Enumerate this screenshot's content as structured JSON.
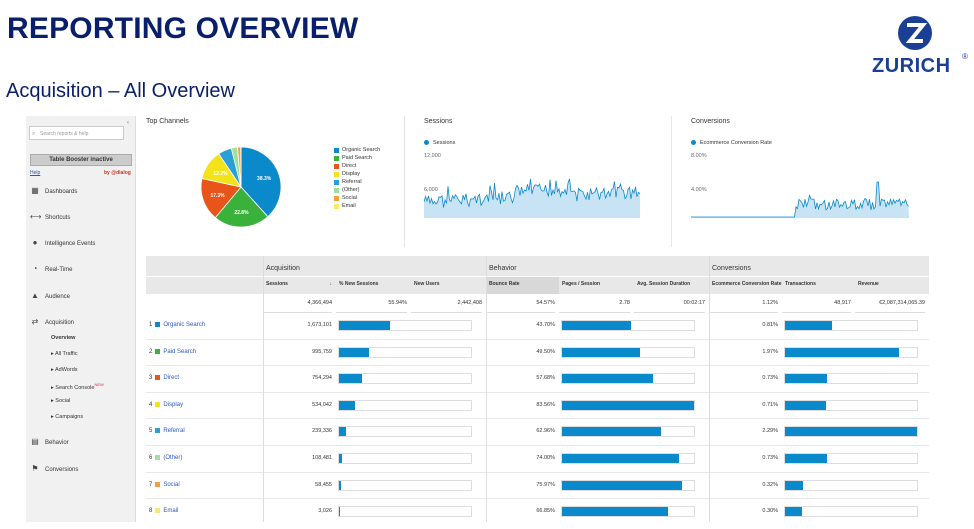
{
  "slide": {
    "title": "REPORTING OVERVIEW",
    "subtitle": "Acquisition – All Overview",
    "logo_text": "ZURICH",
    "logo_reg": "®"
  },
  "sidebar": {
    "search_placeholder": "Search reports & help",
    "collapse_icon": "‹",
    "booster_label": "Table Booster inactive",
    "help_label": "Help",
    "by_label": "by @dialog",
    "items": [
      {
        "label": "Dashboards",
        "icon": "grid-icon",
        "glyph": "▦"
      },
      {
        "label": "Shortcuts",
        "icon": "shortcut-arrow-icon",
        "glyph": "⟷"
      },
      {
        "label": "Intelligence Events",
        "icon": "bulb-icon",
        "glyph": "●"
      },
      {
        "label": "Real-Time",
        "icon": "clock-icon",
        "glyph": "◔"
      },
      {
        "label": "Audience",
        "icon": "people-icon",
        "glyph": "▲"
      },
      {
        "label": "Acquisition",
        "icon": "acquisition-arrows-icon",
        "glyph": "⇄"
      },
      {
        "label": "Behavior",
        "icon": "behavior-page-icon",
        "glyph": "▤"
      },
      {
        "label": "Conversions",
        "icon": "flag-icon",
        "glyph": "⚑"
      }
    ],
    "sub_items": [
      {
        "label": "Overview"
      },
      {
        "label": "▸ All Traffic"
      },
      {
        "label": "▸ AdWords"
      },
      {
        "label": "▸ Search Console",
        "badge": "NEW"
      },
      {
        "label": "▸ Social"
      },
      {
        "label": "▸ Campaigns"
      }
    ]
  },
  "panels": {
    "top_channels": "Top Channels",
    "sessions": "Sessions",
    "conversions": "Conversions",
    "sessions_legend": "Sessions",
    "conversions_legend": "Ecommerce Conversion Rate",
    "sessions_ticks": [
      "12,000",
      "6,000"
    ],
    "conversions_ticks": [
      "8.00%",
      "4.00%"
    ]
  },
  "chart_data": {
    "type": "pie",
    "title": "Top Channels",
    "categories": [
      "Organic Search",
      "Paid Search",
      "Direct",
      "Display",
      "Referral",
      "(Other)",
      "Social",
      "Email"
    ],
    "values": [
      38.3,
      22.8,
      17.3,
      12.2,
      5.5,
      2.5,
      1.3,
      0.1
    ],
    "slice_labels": [
      "38.3%",
      "22.8%",
      "17.3%",
      "12.2%",
      "",
      "",
      "",
      ""
    ],
    "legend_position": "right"
  },
  "colors": {
    "brand": "#0a1f6b",
    "bar": "#0a8acb",
    "channels": [
      "#0a8acb",
      "#3ab13a",
      "#e8541a",
      "#f2e31a",
      "#2a9fd6",
      "#9fe0a0",
      "#f0a33a",
      "#f5eb6a"
    ]
  },
  "table": {
    "groups": [
      "Acquisition",
      "Behavior",
      "Conversions"
    ],
    "columns": [
      "Sessions",
      "% New Sessions",
      "New Users",
      "Bounce Rate",
      "Pages / Session",
      "Avg. Session Duration",
      "Ecommerce Conversion Rate",
      "Transactions",
      "Revenue"
    ],
    "sort_icon": "↓",
    "totals": [
      "4,366,494",
      "55.94%",
      "2,442,408",
      "54.57%",
      "2.78",
      "00:02:17",
      "1.12%",
      "48,917",
      "€2,087,314,065.39"
    ],
    "rows": [
      {
        "idx": "1",
        "channel": "Organic Search",
        "sessions": "1,673,101",
        "bounce": "43.70%",
        "conv": "0.81%",
        "s_frac": 0.383,
        "b_frac": 0.523,
        "c_frac": 0.354
      },
      {
        "idx": "2",
        "channel": "Paid Search",
        "sessions": "995,759",
        "bounce": "49.50%",
        "conv": "1.97%",
        "s_frac": 0.228,
        "b_frac": 0.592,
        "c_frac": 0.86
      },
      {
        "idx": "3",
        "channel": "Direct",
        "sessions": "754,294",
        "bounce": "57.68%",
        "conv": "0.73%",
        "s_frac": 0.173,
        "b_frac": 0.69,
        "c_frac": 0.319
      },
      {
        "idx": "4",
        "channel": "Display",
        "sessions": "534,042",
        "bounce": "83.56%",
        "conv": "0.71%",
        "s_frac": 0.122,
        "b_frac": 1.0,
        "c_frac": 0.31
      },
      {
        "idx": "5",
        "channel": "Referral",
        "sessions": "239,336",
        "bounce": "62.96%",
        "conv": "2.29%",
        "s_frac": 0.055,
        "b_frac": 0.753,
        "c_frac": 1.0
      },
      {
        "idx": "6",
        "channel": "(Other)",
        "sessions": "108,481",
        "bounce": "74.00%",
        "conv": "0.73%",
        "s_frac": 0.025,
        "b_frac": 0.886,
        "c_frac": 0.319
      },
      {
        "idx": "7",
        "channel": "Social",
        "sessions": "58,455",
        "bounce": "75.97%",
        "conv": "0.32%",
        "s_frac": 0.013,
        "b_frac": 0.909,
        "c_frac": 0.14
      },
      {
        "idx": "8",
        "channel": "Email",
        "sessions": "3,026",
        "bounce": "66.85%",
        "conv": "0.30%",
        "s_frac": 0.001,
        "b_frac": 0.8,
        "c_frac": 0.131
      }
    ]
  }
}
